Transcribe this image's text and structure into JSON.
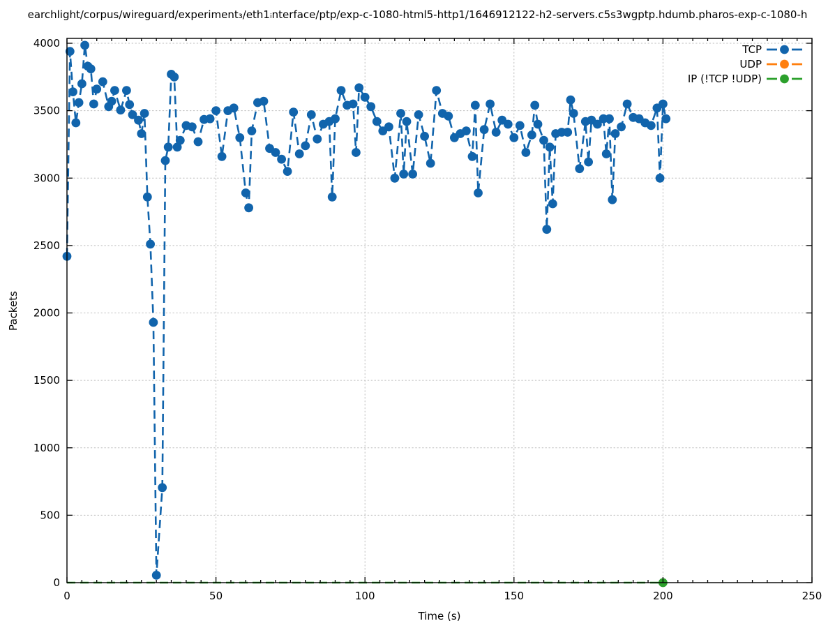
{
  "page": {
    "background": "#ffffff",
    "text_color": "#000000",
    "grid_color": "#bdbdbd",
    "axis_color": "#000000"
  },
  "chart_data": {
    "type": "line",
    "title": "earchlight/corpus/wireguard/experiment₃/eth1ᵢnterface/ptp/exp-c-1080-html5-http1/1646912122-h2-servers.c5s3wgptp.hdumb.pharos-exp-c-1080-h",
    "xlabel": "Time (s)",
    "ylabel": "Packets",
    "xlim": [
      0,
      250
    ],
    "ylim": [
      0,
      4000
    ],
    "xticks": [
      0,
      50,
      100,
      150,
      200,
      250
    ],
    "yticks": [
      0,
      500,
      1000,
      1500,
      2000,
      2500,
      3000,
      3500,
      4000
    ],
    "minor_xtick_step": 5,
    "grid": true,
    "legend_position": "top-right-inside",
    "series": [
      {
        "name": "TCP",
        "color": "#1164ac",
        "marker": "circle",
        "line_style": "dashed",
        "points": [
          [
            0,
            2420
          ],
          [
            1,
            3940
          ],
          [
            2,
            3640
          ],
          [
            3,
            3410
          ],
          [
            4,
            3560
          ],
          [
            5,
            3700
          ],
          [
            6,
            3985
          ],
          [
            7,
            3830
          ],
          [
            8,
            3810
          ],
          [
            9,
            3550
          ],
          [
            10,
            3660
          ],
          [
            12,
            3715
          ],
          [
            14,
            3530
          ],
          [
            15,
            3570
          ],
          [
            16,
            3650
          ],
          [
            18,
            3505
          ],
          [
            20,
            3650
          ],
          [
            21,
            3545
          ],
          [
            22,
            3470
          ],
          [
            24,
            3430
          ],
          [
            25,
            3330
          ],
          [
            26,
            3480
          ],
          [
            27,
            2860
          ],
          [
            28,
            2510
          ],
          [
            29,
            1930
          ],
          [
            30,
            55
          ],
          [
            32,
            705
          ],
          [
            33,
            3130
          ],
          [
            34,
            3230
          ],
          [
            35,
            3770
          ],
          [
            36,
            3750
          ],
          [
            37,
            3230
          ],
          [
            38,
            3280
          ],
          [
            40,
            3390
          ],
          [
            42,
            3380
          ],
          [
            44,
            3270
          ],
          [
            46,
            3435
          ],
          [
            48,
            3440
          ],
          [
            50,
            3500
          ],
          [
            52,
            3160
          ],
          [
            54,
            3500
          ],
          [
            56,
            3520
          ],
          [
            58,
            3300
          ],
          [
            60,
            2890
          ],
          [
            61,
            2780
          ],
          [
            62,
            3350
          ],
          [
            64,
            3560
          ],
          [
            66,
            3570
          ],
          [
            68,
            3220
          ],
          [
            70,
            3190
          ],
          [
            72,
            3140
          ],
          [
            74,
            3050
          ],
          [
            76,
            3490
          ],
          [
            78,
            3180
          ],
          [
            80,
            3240
          ],
          [
            82,
            3470
          ],
          [
            84,
            3290
          ],
          [
            86,
            3400
          ],
          [
            88,
            3420
          ],
          [
            89,
            2860
          ],
          [
            90,
            3440
          ],
          [
            92,
            3650
          ],
          [
            94,
            3540
          ],
          [
            96,
            3550
          ],
          [
            97,
            3190
          ],
          [
            98,
            3670
          ],
          [
            100,
            3600
          ],
          [
            102,
            3530
          ],
          [
            104,
            3420
          ],
          [
            106,
            3350
          ],
          [
            108,
            3380
          ],
          [
            110,
            3000
          ],
          [
            112,
            3480
          ],
          [
            113,
            3030
          ],
          [
            114,
            3420
          ],
          [
            116,
            3030
          ],
          [
            118,
            3470
          ],
          [
            120,
            3310
          ],
          [
            122,
            3110
          ],
          [
            124,
            3650
          ],
          [
            126,
            3480
          ],
          [
            128,
            3460
          ],
          [
            130,
            3300
          ],
          [
            132,
            3330
          ],
          [
            134,
            3350
          ],
          [
            136,
            3160
          ],
          [
            137,
            3540
          ],
          [
            138,
            2890
          ],
          [
            140,
            3360
          ],
          [
            142,
            3550
          ],
          [
            144,
            3340
          ],
          [
            146,
            3430
          ],
          [
            148,
            3400
          ],
          [
            150,
            3300
          ],
          [
            152,
            3390
          ],
          [
            154,
            3190
          ],
          [
            156,
            3320
          ],
          [
            157,
            3540
          ],
          [
            158,
            3400
          ],
          [
            160,
            3280
          ],
          [
            161,
            2620
          ],
          [
            162,
            3230
          ],
          [
            163,
            2810
          ],
          [
            164,
            3330
          ],
          [
            166,
            3340
          ],
          [
            168,
            3340
          ],
          [
            169,
            3580
          ],
          [
            170,
            3480
          ],
          [
            172,
            3070
          ],
          [
            174,
            3420
          ],
          [
            175,
            3120
          ],
          [
            176,
            3430
          ],
          [
            178,
            3400
          ],
          [
            180,
            3440
          ],
          [
            181,
            3180
          ],
          [
            182,
            3440
          ],
          [
            183,
            2840
          ],
          [
            184,
            3330
          ],
          [
            186,
            3380
          ],
          [
            188,
            3550
          ],
          [
            190,
            3450
          ],
          [
            192,
            3440
          ],
          [
            194,
            3410
          ],
          [
            196,
            3390
          ],
          [
            198,
            3520
          ],
          [
            199,
            3000
          ],
          [
            200,
            3550
          ],
          [
            201,
            3440
          ]
        ]
      },
      {
        "name": "UDP",
        "color": "#ff7f0e",
        "marker": "circle",
        "line_style": "dashed",
        "points": []
      },
      {
        "name": "IP (!TCP  !UDP)",
        "color": "#2ca02c",
        "marker": "circle",
        "line_style": "dashed",
        "points": [
          [
            0,
            0
          ],
          [
            201,
            0
          ]
        ],
        "marker_points": [
          [
            200,
            0
          ]
        ]
      }
    ]
  }
}
